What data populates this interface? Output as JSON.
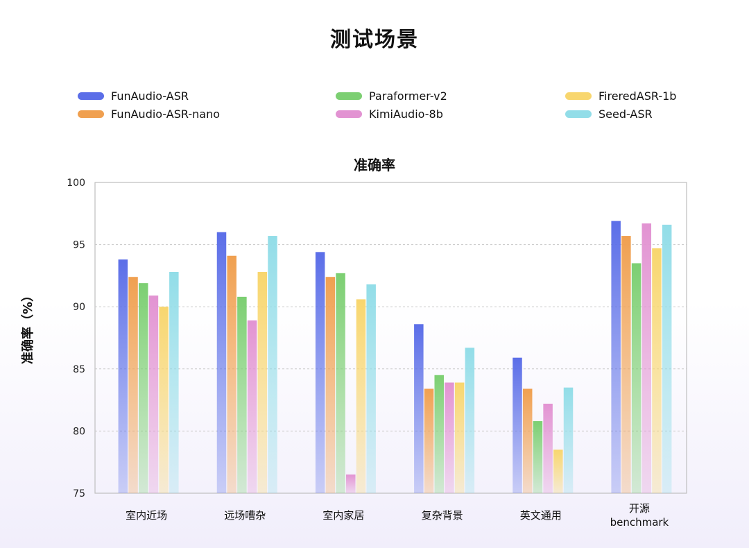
{
  "page": {
    "title": "测试场景"
  },
  "chart_data": {
    "type": "bar",
    "title": "准确率",
    "ylabel": "准确率（%）",
    "xlabel": "",
    "ylim": [
      75,
      100
    ],
    "yticks": [
      75,
      80,
      85,
      90,
      95,
      100
    ],
    "grid": true,
    "legend_position": "top",
    "categories": [
      "室内近场",
      "远场嘈杂",
      "室内家居",
      "复杂背景",
      "英文通用",
      "开源\nbenchmark"
    ],
    "series": [
      {
        "name": "FunAudio-ASR",
        "color": "#5b6ee8",
        "values": [
          93.8,
          96.0,
          94.4,
          88.6,
          85.9,
          96.9
        ]
      },
      {
        "name": "FunAudio-ASR-nano",
        "color": "#f0a050",
        "values": [
          92.4,
          94.1,
          92.4,
          83.4,
          83.4,
          95.7
        ]
      },
      {
        "name": "Paraformer-v2",
        "color": "#7ccf72",
        "values": [
          91.9,
          90.8,
          92.7,
          84.5,
          80.8,
          93.5
        ]
      },
      {
        "name": "KimiAudio-8b",
        "color": "#e293d2",
        "values": [
          90.9,
          88.9,
          76.5,
          83.9,
          82.2,
          96.7
        ]
      },
      {
        "name": "FireredASR-1b",
        "color": "#f8d66e",
        "values": [
          90.0,
          92.8,
          90.6,
          83.9,
          78.5,
          94.7
        ]
      },
      {
        "name": "Seed-ASR",
        "color": "#92dde8",
        "values": [
          92.8,
          95.7,
          91.8,
          86.7,
          83.5,
          96.6
        ]
      }
    ]
  }
}
